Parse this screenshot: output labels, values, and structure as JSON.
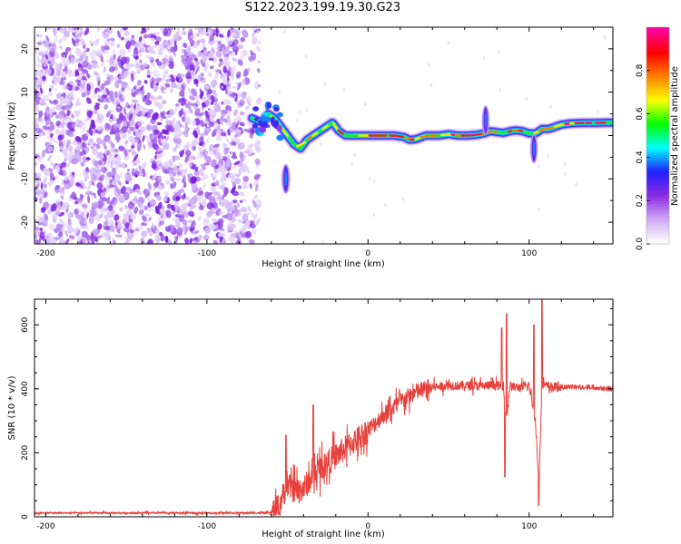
{
  "title": "S122.2023.199.19.30.G23",
  "chart_data": [
    {
      "type": "heatmap",
      "title": "S122.2023.199.19.30.G23",
      "xlabel": "Height of straight line (km)",
      "ylabel": "Frequency (Hz)",
      "xlim": [
        -207,
        152
      ],
      "ylim": [
        -25,
        25
      ],
      "xticks": [
        -200,
        -100,
        0,
        100
      ],
      "yticks": [
        -20,
        -10,
        0,
        10,
        20
      ],
      "grid": false,
      "noise_region": {
        "x_from": -207,
        "x_to": -72
      },
      "ridge": {
        "x": [
          -72,
          -66,
          -62,
          -58,
          -54,
          -50,
          -46,
          -42,
          -38,
          -34,
          -30,
          -26,
          -22,
          -18,
          -14,
          -10,
          -6,
          -2,
          4,
          10,
          16,
          22,
          26,
          30,
          36,
          44,
          50,
          56,
          62,
          68,
          72,
          76,
          80,
          84,
          88,
          92,
          96,
          100,
          104,
          108,
          112,
          116,
          120,
          126,
          132,
          140,
          152
        ],
        "y": [
          4,
          3,
          5,
          4,
          2,
          0,
          -2,
          -3,
          -1,
          0,
          1,
          2,
          3,
          1,
          0,
          0,
          0,
          0,
          0,
          0,
          0,
          -0.3,
          -1,
          -0.8,
          0,
          0,
          0.3,
          0,
          0,
          0.2,
          0.5,
          1,
          0.8,
          0.6,
          1,
          1.2,
          1,
          0.5,
          0.5,
          1.5,
          1.5,
          2,
          2.5,
          2.8,
          2.9,
          2.9,
          3
        ]
      },
      "blobs": [
        {
          "x": -51,
          "y": -10,
          "width_km": 3,
          "height_hz": 6
        },
        {
          "x": 73,
          "y": 3.5,
          "width_km": 2.5,
          "height_hz": 6
        },
        {
          "x": 103,
          "y": -3,
          "width_km": 2.5,
          "height_hz": 6
        }
      ],
      "colorbar": {
        "label": "Normalized spectral amplitude",
        "range": [
          0,
          1
        ],
        "ticks": [
          "0.0",
          "0.2",
          "0.4",
          "0.6",
          "0.8"
        ],
        "tick_values": [
          0,
          0.2,
          0.4,
          0.6,
          0.8
        ],
        "colors": [
          "#ffffff",
          "#cfa8f5",
          "#8a2be2",
          "#2020ff",
          "#00ffff",
          "#00ff00",
          "#ffff00",
          "#ff8000",
          "#ff0000",
          "#ff00a0"
        ]
      }
    },
    {
      "type": "line",
      "xlabel": "Height of straight line (km)",
      "ylabel": "SNR (10 * v/v)",
      "xlim": [
        -207,
        152
      ],
      "ylim": [
        0,
        680
      ],
      "xticks": [
        -200,
        -100,
        0,
        100
      ],
      "yticks": [
        0,
        200,
        400,
        600
      ],
      "grid": false,
      "color": "#e8403a",
      "envelope": {
        "x": [
          -207,
          -80,
          -60,
          -55,
          -50,
          -45,
          -40,
          -35,
          -30,
          -20,
          -10,
          0,
          10,
          20,
          30,
          40,
          50,
          60,
          70,
          80,
          84,
          86,
          88,
          90,
          95,
          100,
          104,
          106,
          108,
          110,
          115,
          120,
          130,
          140,
          152
        ],
        "y": [
          12,
          12,
          12,
          40,
          100,
          80,
          90,
          120,
          150,
          190,
          230,
          270,
          320,
          360,
          390,
          405,
          410,
          410,
          410,
          410,
          410,
          300,
          410,
          405,
          405,
          410,
          300,
          100,
          420,
          410,
          405,
          405,
          405,
          405,
          400
        ]
      },
      "spikes": [
        {
          "x": -51,
          "y": 255
        },
        {
          "x": -34,
          "y": 350
        },
        {
          "x": 83,
          "y": 590
        },
        {
          "x": 85,
          "y": 125
        },
        {
          "x": 86,
          "y": 635
        },
        {
          "x": 106,
          "y": 35
        },
        {
          "x": 108,
          "y": 680
        },
        {
          "x": 103,
          "y": 600
        }
      ]
    }
  ]
}
